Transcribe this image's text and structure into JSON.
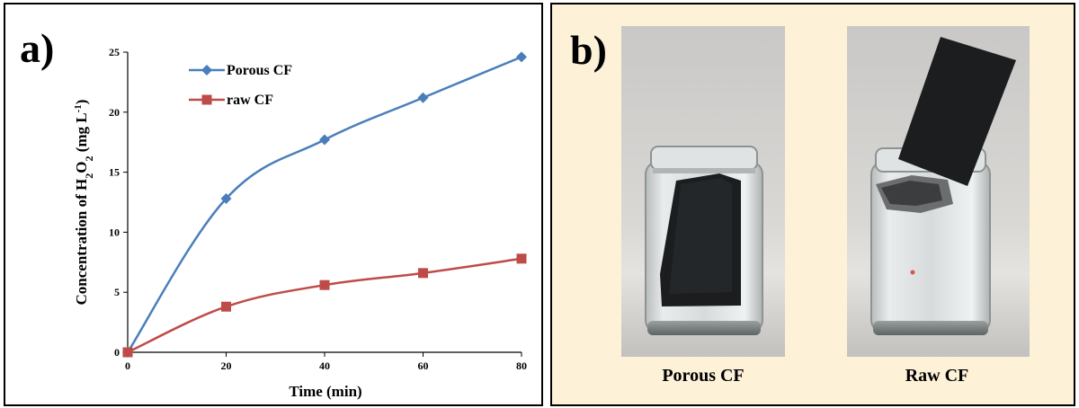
{
  "panel_a": {
    "letter": "a)",
    "chart_data": {
      "type": "line",
      "xlabel": "Time (min)",
      "ylabel": "Concentration of H2O2 (mg L-1)",
      "ylabel_parts": {
        "prefix": "Concentration of H",
        "sub1": "2",
        "mid": "O",
        "sub2": "2",
        "unit_open": " (mg L",
        "sup": "-1",
        "unit_close": ")"
      },
      "x": [
        0,
        20,
        40,
        60,
        80
      ],
      "xlim": [
        0,
        80
      ],
      "ylim": [
        0,
        25
      ],
      "xticks": [
        0,
        20,
        40,
        60,
        80
      ],
      "yticks": [
        0,
        5,
        10,
        15,
        20,
        25
      ],
      "grid": false,
      "legend_position": "top-left",
      "series": [
        {
          "name": "Porous CF",
          "values": [
            0,
            12.8,
            17.7,
            21.2,
            24.6
          ],
          "color": "#4a7ebb",
          "marker": "diamond"
        },
        {
          "name": "raw CF",
          "values": [
            0,
            3.8,
            5.6,
            6.6,
            7.8
          ],
          "color": "#be4b48",
          "marker": "square"
        }
      ]
    }
  },
  "panel_b": {
    "letter": "b)",
    "photos": [
      {
        "caption": "Porous CF"
      },
      {
        "caption": "Raw CF"
      }
    ]
  }
}
